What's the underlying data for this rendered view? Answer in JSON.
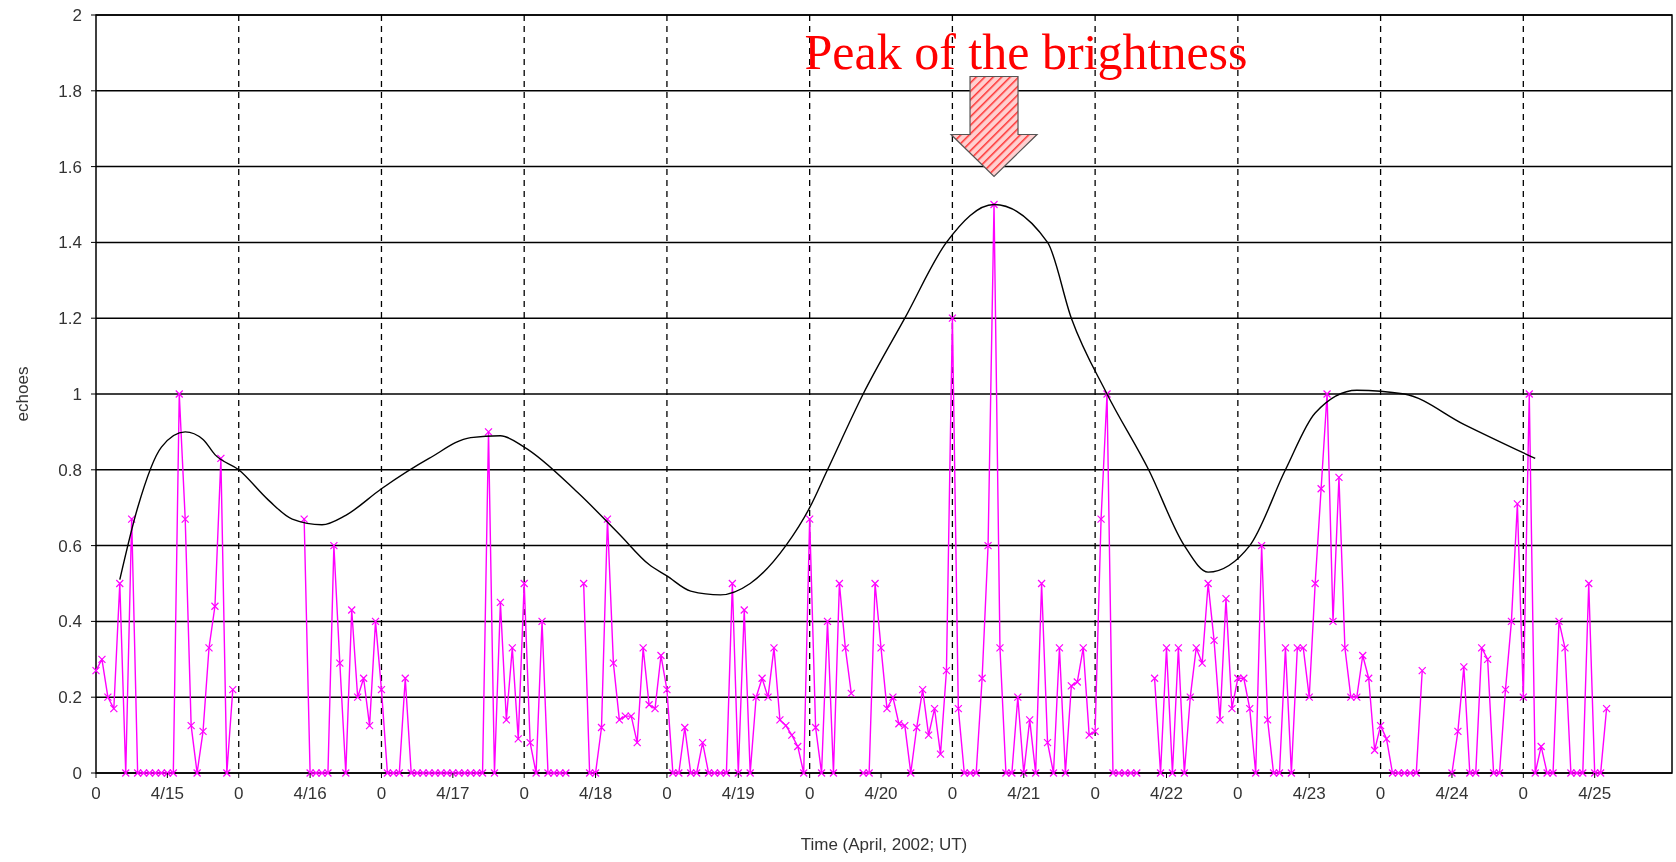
{
  "chart_data": {
    "type": "line",
    "xlabel": "Time (April, 2002; UT)",
    "ylabel": "echoes",
    "xlim": [
      "2002-04-15T00:00",
      "2002-04-26T01:00"
    ],
    "ylim": [
      0,
      2
    ],
    "xticks": [
      {
        "value": "2002-04-15T00:00",
        "label": "0"
      },
      {
        "value": "2002-04-15T12:00",
        "label": "4/15"
      },
      {
        "value": "2002-04-16T00:00",
        "label": "0"
      },
      {
        "value": "2002-04-16T12:00",
        "label": "4/16"
      },
      {
        "value": "2002-04-17T00:00",
        "label": "0"
      },
      {
        "value": "2002-04-17T12:00",
        "label": "4/17"
      },
      {
        "value": "2002-04-18T00:00",
        "label": "0"
      },
      {
        "value": "2002-04-18T12:00",
        "label": "4/18"
      },
      {
        "value": "2002-04-19T00:00",
        "label": "0"
      },
      {
        "value": "2002-04-19T12:00",
        "label": "4/19"
      },
      {
        "value": "2002-04-20T00:00",
        "label": "0"
      },
      {
        "value": "2002-04-20T12:00",
        "label": "4/20"
      },
      {
        "value": "2002-04-21T00:00",
        "label": "0"
      },
      {
        "value": "2002-04-21T12:00",
        "label": "4/21"
      },
      {
        "value": "2002-04-22T00:00",
        "label": "0"
      },
      {
        "value": "2002-04-22T12:00",
        "label": "4/22"
      },
      {
        "value": "2002-04-23T00:00",
        "label": "0"
      },
      {
        "value": "2002-04-23T12:00",
        "label": "4/23"
      },
      {
        "value": "2002-04-24T00:00",
        "label": "0"
      },
      {
        "value": "2002-04-24T12:00",
        "label": "4/24"
      },
      {
        "value": "2002-04-25T00:00",
        "label": "0"
      },
      {
        "value": "2002-04-25T12:00",
        "label": "4/25"
      }
    ],
    "yticks": [
      0,
      0.2,
      0.4,
      0.6,
      0.8,
      1,
      1.2,
      1.4,
      1.6,
      1.8,
      2
    ],
    "grid": "y",
    "line_style": "solid",
    "ref_lines": [
      {
        "axis": "x",
        "value": "2002-04-16T00:00",
        "color": "#000000",
        "line_style": "dashed"
      },
      {
        "axis": "x",
        "value": "2002-04-17T00:00",
        "color": "#000000",
        "line_style": "dashed"
      },
      {
        "axis": "x",
        "value": "2002-04-18T00:00",
        "color": "#000000",
        "line_style": "dashed"
      },
      {
        "axis": "x",
        "value": "2002-04-19T00:00",
        "color": "#000000",
        "line_style": "dashed"
      },
      {
        "axis": "x",
        "value": "2002-04-20T00:00",
        "color": "#000000",
        "line_style": "dashed"
      },
      {
        "axis": "x",
        "value": "2002-04-21T00:00",
        "color": "#000000",
        "line_style": "dashed"
      },
      {
        "axis": "x",
        "value": "2002-04-22T00:00",
        "color": "#000000",
        "line_style": "dashed"
      },
      {
        "axis": "x",
        "value": "2002-04-23T00:00",
        "color": "#000000",
        "line_style": "dashed"
      },
      {
        "axis": "x",
        "value": "2002-04-24T00:00",
        "color": "#000000",
        "line_style": "dashed"
      },
      {
        "axis": "x",
        "value": "2002-04-25T00:00",
        "color": "#000000",
        "line_style": "dashed"
      }
    ],
    "annotations": [
      {
        "text": "Peak of the brightness",
        "x": "2002-04-21T07:00",
        "y": 1.5
      }
    ],
    "series": [
      {
        "color": "#ff00ff",
        "marker": "cross",
        "x": [
          "2002-04-15T00:00",
          "2002-04-15T01:00",
          "2002-04-15T02:00",
          "2002-04-15T03:00",
          "2002-04-15T04:00",
          "2002-04-15T05:00",
          "2002-04-15T06:00",
          "2002-04-15T07:00",
          "2002-04-15T08:00",
          "2002-04-15T09:00",
          "2002-04-15T10:00",
          "2002-04-15T11:00",
          "2002-04-15T12:00",
          "2002-04-15T13:00",
          "2002-04-15T14:00",
          "2002-04-15T15:00",
          "2002-04-15T16:00",
          "2002-04-15T17:00",
          "2002-04-15T18:00",
          "2002-04-15T19:00",
          "2002-04-15T20:00",
          "2002-04-15T21:00",
          "2002-04-15T22:00",
          "2002-04-15T23:00",
          "2002-04-16T00:00",
          "2002-04-16T11:00",
          "2002-04-16T12:00",
          "2002-04-16T13:00",
          "2002-04-16T14:00",
          "2002-04-16T15:00",
          "2002-04-16T16:00",
          "2002-04-16T17:00",
          "2002-04-16T18:00",
          "2002-04-16T19:00",
          "2002-04-16T20:00",
          "2002-04-16T21:00",
          "2002-04-16T22:00",
          "2002-04-16T23:00",
          "2002-04-17T00:00",
          "2002-04-17T01:00",
          "2002-04-17T02:00",
          "2002-04-17T03:00",
          "2002-04-17T04:00",
          "2002-04-17T05:00",
          "2002-04-17T06:00",
          "2002-04-17T07:00",
          "2002-04-17T08:00",
          "2002-04-17T09:00",
          "2002-04-17T10:00",
          "2002-04-17T11:00",
          "2002-04-17T12:00",
          "2002-04-17T13:00",
          "2002-04-17T14:00",
          "2002-04-17T15:00",
          "2002-04-17T16:00",
          "2002-04-17T17:00",
          "2002-04-17T18:00",
          "2002-04-17T19:00",
          "2002-04-17T20:00",
          "2002-04-17T21:00",
          "2002-04-17T22:00",
          "2002-04-17T23:00",
          "2002-04-18T00:00",
          "2002-04-18T01:00",
          "2002-04-18T02:00",
          "2002-04-18T03:00",
          "2002-04-18T04:00",
          "2002-04-18T05:00",
          "2002-04-18T06:00",
          "2002-04-18T07:00",
          "2002-04-18T08:00",
          "2002-04-18T09:00",
          "2002-04-18T10:00",
          "2002-04-18T11:00",
          "2002-04-18T12:00",
          "2002-04-18T13:00",
          "2002-04-18T14:00",
          "2002-04-18T15:00",
          "2002-04-18T16:00",
          "2002-04-18T17:00",
          "2002-04-18T18:00",
          "2002-04-18T19:00",
          "2002-04-18T20:00",
          "2002-04-18T21:00",
          "2002-04-18T22:00",
          "2002-04-18T23:00",
          "2002-04-19T00:00",
          "2002-04-19T01:00",
          "2002-04-19T02:00",
          "2002-04-19T03:00",
          "2002-04-19T04:00",
          "2002-04-19T05:00",
          "2002-04-19T06:00",
          "2002-04-19T07:00",
          "2002-04-19T08:00",
          "2002-04-19T09:00",
          "2002-04-19T10:00",
          "2002-04-19T11:00",
          "2002-04-19T12:00",
          "2002-04-19T13:00",
          "2002-04-19T14:00",
          "2002-04-19T15:00",
          "2002-04-19T16:00",
          "2002-04-19T17:00",
          "2002-04-19T18:00",
          "2002-04-19T19:00",
          "2002-04-19T20:00",
          "2002-04-19T21:00",
          "2002-04-19T22:00",
          "2002-04-19T23:00",
          "2002-04-20T00:00",
          "2002-04-20T01:00",
          "2002-04-20T02:00",
          "2002-04-20T03:00",
          "2002-04-20T04:00",
          "2002-04-20T05:00",
          "2002-04-20T06:00",
          "2002-04-20T07:00",
          "2002-04-20T08:00",
          "2002-04-20T09:00",
          "2002-04-20T10:00",
          "2002-04-20T11:00",
          "2002-04-20T12:00",
          "2002-04-20T13:00",
          "2002-04-20T14:00",
          "2002-04-20T15:00",
          "2002-04-20T16:00",
          "2002-04-20T17:00",
          "2002-04-20T18:00",
          "2002-04-20T19:00",
          "2002-04-20T20:00",
          "2002-04-20T21:00",
          "2002-04-20T22:00",
          "2002-04-20T23:00",
          "2002-04-21T00:00",
          "2002-04-21T01:00",
          "2002-04-21T02:00",
          "2002-04-21T03:00",
          "2002-04-21T04:00",
          "2002-04-21T05:00",
          "2002-04-21T06:00",
          "2002-04-21T07:00",
          "2002-04-21T08:00",
          "2002-04-21T09:00",
          "2002-04-21T10:00",
          "2002-04-21T11:00",
          "2002-04-21T12:00",
          "2002-04-21T13:00",
          "2002-04-21T14:00",
          "2002-04-21T15:00",
          "2002-04-21T16:00",
          "2002-04-21T17:00",
          "2002-04-21T18:00",
          "2002-04-21T19:00",
          "2002-04-21T20:00",
          "2002-04-21T21:00",
          "2002-04-21T22:00",
          "2002-04-21T23:00",
          "2002-04-22T00:00",
          "2002-04-22T01:00",
          "2002-04-22T02:00",
          "2002-04-22T03:00",
          "2002-04-22T04:00",
          "2002-04-22T05:00",
          "2002-04-22T06:00",
          "2002-04-22T07:00",
          "2002-04-22T08:00",
          "2002-04-22T09:00",
          "2002-04-22T10:00",
          "2002-04-22T11:00",
          "2002-04-22T12:00",
          "2002-04-22T13:00",
          "2002-04-22T14:00",
          "2002-04-22T15:00",
          "2002-04-22T16:00",
          "2002-04-22T17:00",
          "2002-04-22T18:00",
          "2002-04-22T19:00",
          "2002-04-22T20:00",
          "2002-04-22T21:00",
          "2002-04-22T22:00",
          "2002-04-22T23:00",
          "2002-04-23T00:00",
          "2002-04-23T01:00",
          "2002-04-23T02:00",
          "2002-04-23T03:00",
          "2002-04-23T04:00",
          "2002-04-23T05:00",
          "2002-04-23T06:00",
          "2002-04-23T07:00",
          "2002-04-23T08:00",
          "2002-04-23T09:00",
          "2002-04-23T10:00",
          "2002-04-23T11:00",
          "2002-04-23T12:00",
          "2002-04-23T13:00",
          "2002-04-23T14:00",
          "2002-04-23T15:00",
          "2002-04-23T16:00",
          "2002-04-23T17:00",
          "2002-04-23T18:00",
          "2002-04-23T19:00",
          "2002-04-23T20:00",
          "2002-04-23T21:00",
          "2002-04-23T22:00",
          "2002-04-23T23:00",
          "2002-04-24T00:00",
          "2002-04-24T01:00",
          "2002-04-24T02:00",
          "2002-04-24T03:00",
          "2002-04-24T04:00",
          "2002-04-24T05:00",
          "2002-04-24T06:00",
          "2002-04-24T07:00",
          "2002-04-24T08:00",
          "2002-04-24T12:00",
          "2002-04-24T13:00",
          "2002-04-24T14:00",
          "2002-04-24T15:00",
          "2002-04-24T16:00",
          "2002-04-24T17:00",
          "2002-04-24T18:00",
          "2002-04-24T19:00",
          "2002-04-24T20:00",
          "2002-04-24T21:00",
          "2002-04-24T22:00",
          "2002-04-24T23:00",
          "2002-04-25T00:00",
          "2002-04-25T01:00",
          "2002-04-25T02:00",
          "2002-04-25T03:00",
          "2002-04-25T04:00",
          "2002-04-25T05:00",
          "2002-04-25T06:00",
          "2002-04-25T07:00",
          "2002-04-25T08:00",
          "2002-04-25T09:00",
          "2002-04-25T10:00",
          "2002-04-25T11:00",
          "2002-04-25T12:00",
          "2002-04-25T13:00",
          "2002-04-25T14:00"
        ],
        "values": [
          0.27,
          0.3,
          0.2,
          0.17,
          0.5,
          0,
          0.67,
          0,
          0,
          0,
          0,
          0,
          0,
          0,
          1,
          0.67,
          0.125,
          0,
          0.11,
          0.33,
          0.44,
          0.83,
          0,
          0.22,
          null,
          0.67,
          0,
          0,
          0,
          0,
          0.6,
          0.29,
          0,
          0.43,
          0.2,
          0.25,
          0.125,
          0.4,
          0.22,
          0,
          0,
          0,
          0.25,
          0,
          0,
          0,
          0,
          0,
          0,
          0,
          0,
          0,
          0,
          0,
          0,
          0,
          0.9,
          0,
          0.45,
          0.14,
          0.33,
          0.09,
          0.5,
          0.08,
          0,
          0.4,
          0,
          0,
          0,
          0,
          null,
          null,
          0.5,
          0,
          0,
          0.12,
          0.67,
          0.29,
          0.14,
          0.15,
          0.15,
          0.08,
          0.33,
          0.18,
          0.17,
          0.31,
          0.22,
          0,
          0,
          0.12,
          0,
          0,
          0.08,
          0,
          0,
          0,
          0,
          0.5,
          0,
          0.43,
          0,
          0.2,
          0.25,
          0.2,
          0.33,
          0.14,
          0.125,
          0.1,
          0.07,
          0,
          0.67,
          0.12,
          0,
          0.4,
          0,
          0.5,
          0.33,
          0.21,
          null,
          0,
          0,
          0.5,
          0.33,
          0.17,
          0.2,
          0.13,
          0.125,
          0,
          0.12,
          0.22,
          0.1,
          0.17,
          0.05,
          0.27,
          1.2,
          0.17,
          0,
          0,
          0,
          0.25,
          0.6,
          1.5,
          0.33,
          0,
          0,
          0.2,
          0,
          0.14,
          0,
          0.5,
          0.08,
          0,
          0.33,
          0,
          0.23,
          0.24,
          0.33,
          0.1,
          0.11,
          0.67,
          1,
          0,
          0,
          0,
          0,
          0,
          null,
          null,
          0.25,
          0,
          0.33,
          0,
          0.33,
          0,
          0.2,
          0.33,
          0.29,
          0.5,
          0.35,
          0.14,
          0.46,
          0.17,
          0.25,
          0.25,
          0.17,
          0,
          0.6,
          0.14,
          0,
          0,
          0.33,
          0,
          0.33,
          0.33,
          0.2,
          0.5,
          0.75,
          1,
          0.4,
          0.78,
          0.33,
          0.2,
          0.2,
          0.31,
          0.25,
          0.06,
          0.125,
          0.09,
          0,
          0,
          0,
          0,
          0,
          0.27,
          null,
          0,
          0.11,
          0.28,
          0,
          0,
          0.33,
          0.3,
          0,
          0,
          0.22,
          0.4,
          0.71,
          0.2,
          1,
          0,
          0.07,
          0,
          0,
          0.4,
          0.33,
          0,
          0,
          0,
          0.5,
          0,
          0,
          0.17
        ]
      },
      {
        "color": "#000000",
        "marker": "none",
        "x": [
          "2002-04-15T04:00",
          "2002-04-15T07:00",
          "2002-04-15T11:00",
          "2002-04-15T15:00",
          "2002-04-15T18:00",
          "2002-04-15T20:00",
          "2002-04-16T00:00",
          "2002-04-16T05:00",
          "2002-04-16T09:00",
          "2002-04-16T14:00",
          "2002-04-16T18:00",
          "2002-04-17T00:00",
          "2002-04-17T08:00",
          "2002-04-17T15:00",
          "2002-04-17T20:00",
          "2002-04-18T00:00",
          "2002-04-18T09:00",
          "2002-04-18T16:00",
          "2002-04-18T21:00",
          "2002-04-19T00:00",
          "2002-04-19T04:00",
          "2002-04-19T09:00",
          "2002-04-19T14:00",
          "2002-04-19T20:00",
          "2002-04-20T00:00",
          "2002-04-20T03:00",
          "2002-04-20T09:00",
          "2002-04-20T16:00",
          "2002-04-20T23:00",
          "2002-04-21T07:00",
          "2002-04-21T16:00",
          "2002-04-21T20:00",
          "2002-04-22T02:00",
          "2002-04-22T09:00",
          "2002-04-22T15:00",
          "2002-04-22T19:00",
          "2002-04-23T02:00",
          "2002-04-23T08:00",
          "2002-04-23T13:00",
          "2002-04-23T20:00",
          "2002-04-24T04:00",
          "2002-04-24T14:00",
          "2002-04-25T02:00"
        ],
        "values": [
          0.51,
          0.7,
          0.86,
          0.9,
          0.88,
          0.84,
          0.8,
          0.72,
          0.67,
          0.655,
          0.68,
          0.75,
          0.83,
          0.885,
          0.89,
          0.86,
          0.74,
          0.63,
          0.55,
          0.52,
          0.48,
          0.47,
          0.5,
          0.6,
          0.7,
          0.8,
          1.0,
          1.2,
          1.4,
          1.5,
          1.4,
          1.2,
          1.0,
          0.8,
          0.6,
          0.53,
          0.6,
          0.8,
          0.95,
          1.01,
          1.0,
          0.92,
          0.83
        ]
      }
    ]
  }
}
